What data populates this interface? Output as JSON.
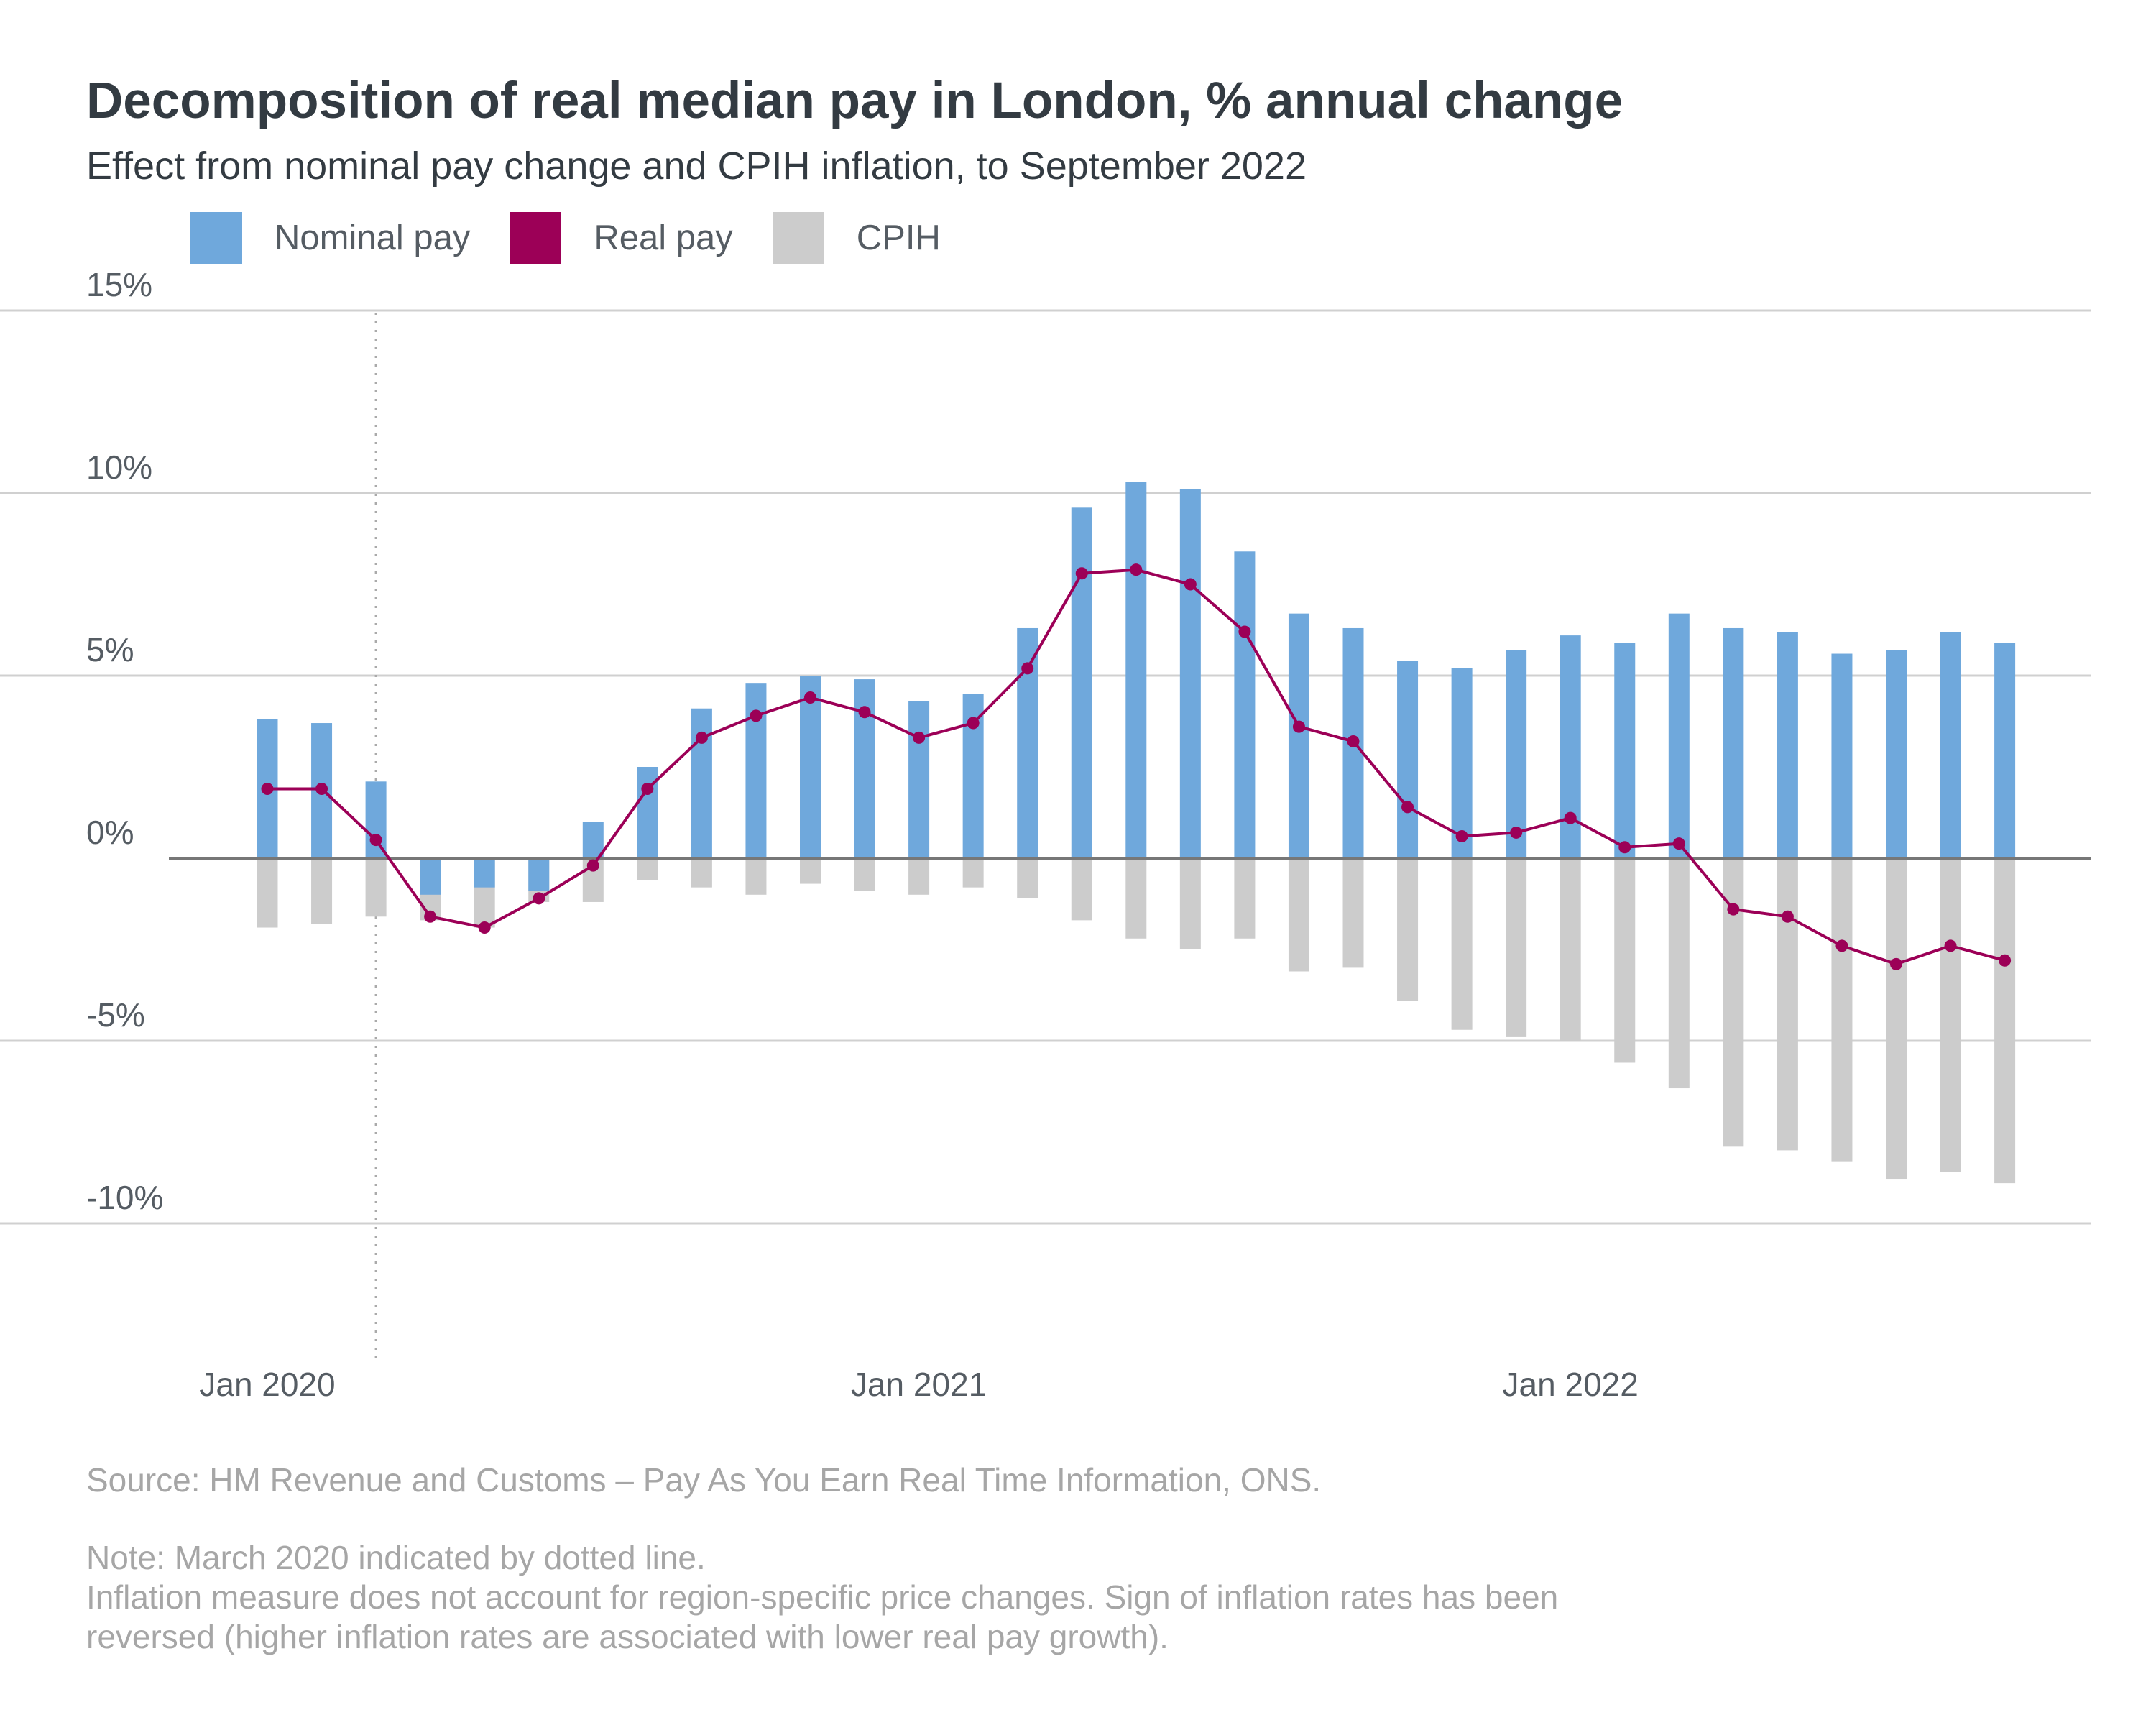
{
  "colors": {
    "nominal": "#6fa8dc",
    "real": "#9c0057",
    "cpih": "#cccccc",
    "grid": "#d0d0d0",
    "zero": "#777777",
    "text": "#333b42",
    "axis_text": "#555c63",
    "note_text": "#a6a6a6"
  },
  "chart_data": {
    "type": "bar",
    "title": "Decomposition of real median pay in London, % annual change",
    "subtitle": "Effect from nominal pay change and CPIH inflation, to September 2022",
    "legend_position": "top-left",
    "legend": [
      {
        "key": "nominal",
        "label": "Nominal pay"
      },
      {
        "key": "real",
        "label": "Real pay"
      },
      {
        "key": "cpih",
        "label": "CPIH"
      }
    ],
    "ylim": [
      -10,
      15
    ],
    "yticks": [
      15,
      10,
      5,
      0,
      -5,
      -10
    ],
    "ytick_labels": [
      "15%",
      "10%",
      "5%",
      "0%",
      "-5%",
      "-10%"
    ],
    "grid": true,
    "xtick_labels": [
      {
        "month": "2020-01",
        "label": "Jan 2020"
      },
      {
        "month": "2021-01",
        "label": "Jan 2021"
      },
      {
        "month": "2022-01",
        "label": "Jan 2022"
      }
    ],
    "reference_line": {
      "month": "2020-03",
      "style": "dotted"
    },
    "categories": [
      "2020-01",
      "2020-02",
      "2020-03",
      "2020-04",
      "2020-05",
      "2020-06",
      "2020-07",
      "2020-08",
      "2020-09",
      "2020-10",
      "2020-11",
      "2020-12",
      "2021-01",
      "2021-02",
      "2021-03",
      "2021-04",
      "2021-05",
      "2021-06",
      "2021-07",
      "2021-08",
      "2021-09",
      "2021-10",
      "2021-11",
      "2021-12",
      "2022-01",
      "2022-02",
      "2022-03",
      "2022-04",
      "2022-05",
      "2022-06",
      "2022-07",
      "2022-08",
      "2022-09"
    ],
    "series": [
      {
        "name": "Nominal pay",
        "kind": "bar",
        "values": [
          3.8,
          3.7,
          2.1,
          -1.0,
          -0.8,
          -0.9,
          1.0,
          2.5,
          4.1,
          4.8,
          5.0,
          4.9,
          4.3,
          4.5,
          6.3,
          9.6,
          10.3,
          10.1,
          8.4,
          6.7,
          6.3,
          5.4,
          5.2,
          5.7,
          6.1,
          5.9,
          6.7,
          6.3,
          6.2,
          5.6,
          5.7,
          6.2,
          5.9
        ]
      },
      {
        "name": "CPIH",
        "kind": "bar",
        "values": [
          -1.9,
          -1.8,
          -1.6,
          -1.7,
          -1.9,
          -1.2,
          -1.2,
          -0.6,
          -0.8,
          -1.0,
          -0.7,
          -0.9,
          -1.0,
          -0.8,
          -1.1,
          -1.7,
          -2.2,
          -2.5,
          -2.2,
          -3.1,
          -3.0,
          -3.9,
          -4.7,
          -4.9,
          -5.0,
          -5.6,
          -6.3,
          -7.9,
          -8.0,
          -8.3,
          -8.8,
          -8.6,
          -8.9
        ]
      },
      {
        "name": "Real pay",
        "kind": "line",
        "values": [
          1.9,
          1.9,
          0.5,
          -1.6,
          -1.9,
          -1.1,
          -0.2,
          1.9,
          3.3,
          3.9,
          4.4,
          4.0,
          3.3,
          3.7,
          5.2,
          7.8,
          7.9,
          7.5,
          6.2,
          3.6,
          3.2,
          1.4,
          0.6,
          0.7,
          1.1,
          0.3,
          0.4,
          -1.4,
          -1.6,
          -2.4,
          -2.9,
          -2.4,
          -2.8
        ]
      }
    ]
  },
  "notes": {
    "source": "Source: HM Revenue and Customs – Pay As You Earn Real Time Information, ONS.",
    "note_line1": "Note: March 2020 indicated by dotted line.",
    "note_line2": "Inflation measure does not account for region-specific price changes. Sign of inflation rates has been",
    "note_line3": "reversed (higher inflation rates are associated with lower real pay growth)."
  }
}
